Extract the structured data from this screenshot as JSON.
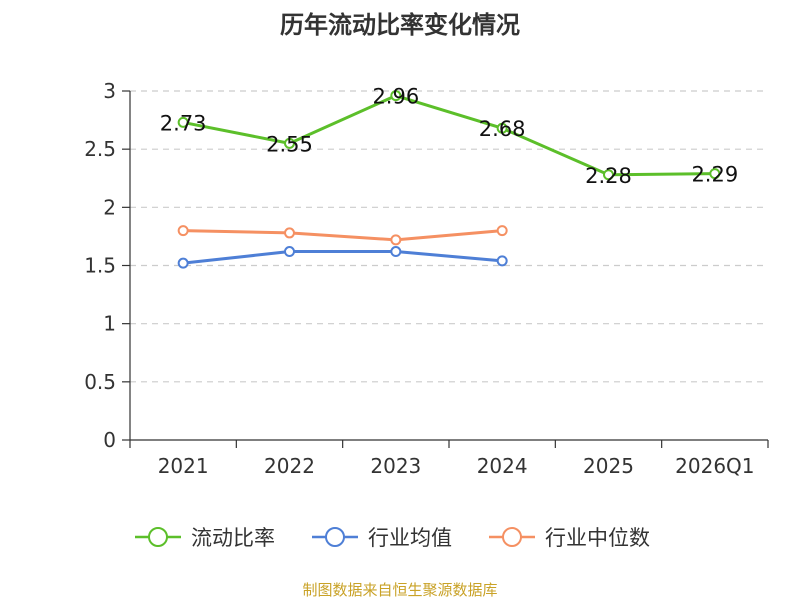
{
  "chart_data": {
    "type": "line",
    "title": "历年流动比率变化情况",
    "categories": [
      "2021",
      "2022",
      "2023",
      "2024",
      "2025",
      "2026Q1"
    ],
    "ylim": [
      0,
      3
    ],
    "yticks": [
      "0",
      "0.5",
      "1",
      "1.5",
      "2",
      "2.5",
      "3"
    ],
    "grid": true,
    "legend": "bottom",
    "series": [
      {
        "name": "流动比率",
        "color": "#5cbf2a",
        "values": [
          2.73,
          2.55,
          2.96,
          2.68,
          2.28,
          2.29
        ],
        "labels": [
          "2.73",
          "2.55",
          "2.96",
          "2.68",
          "2.28",
          "2.29"
        ]
      },
      {
        "name": "行业均值",
        "color": "#4e7fd6",
        "values": [
          1.52,
          1.62,
          1.62,
          1.54,
          null,
          null
        ]
      },
      {
        "name": "行业中位数",
        "color": "#f59062",
        "values": [
          1.8,
          1.78,
          1.72,
          1.8,
          null,
          null
        ]
      }
    ],
    "source": "制图数据来自恒生聚源数据库"
  }
}
